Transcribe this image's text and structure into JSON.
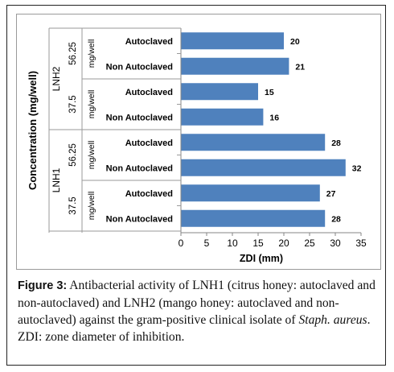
{
  "chart_data": {
    "type": "bar",
    "orientation": "horizontal",
    "xlabel": "ZDI (mm)",
    "ylabel": "Concentration (mg/well)",
    "xlim": [
      0,
      35
    ],
    "xticks": [
      0,
      5,
      10,
      15,
      20,
      25,
      30,
      35
    ],
    "bar_color": "#4f81bd",
    "grid": false,
    "legend": "none",
    "groups": [
      {
        "name": "LNH2",
        "subgroups": [
          {
            "name": "56.25",
            "unit": "mg/well",
            "bars": [
              {
                "label": "Autoclaved",
                "value": 20
              },
              {
                "label": "Non Autoclaved",
                "value": 21
              }
            ]
          },
          {
            "name": "37.5",
            "unit": "mg/well",
            "bars": [
              {
                "label": "Autoclaved",
                "value": 15
              },
              {
                "label": "Non Autoclaved",
                "value": 16
              }
            ]
          }
        ]
      },
      {
        "name": "LNH1",
        "subgroups": [
          {
            "name": "56.25",
            "unit": "mg/well",
            "bars": [
              {
                "label": "Autoclaved",
                "value": 28
              },
              {
                "label": "Non Autoclaved",
                "value": 32
              }
            ]
          },
          {
            "name": "37.5",
            "unit": "mg/well",
            "bars": [
              {
                "label": "Autoclaved",
                "value": 27
              },
              {
                "label": "Non Autoclaved",
                "value": 28
              }
            ]
          }
        ]
      }
    ]
  },
  "caption": {
    "label": "Figure 3:",
    "text_1": " Antibacterial activity of LNH1 (citrus honey: autoclaved and non-autoclaved) and LNH2 (mango honey: autoclaved and non-autoclaved) against the gram-positive clinical isolate of ",
    "species": "Staph. aureus",
    "text_2": ". ZDI: zone diameter of inhibition."
  }
}
